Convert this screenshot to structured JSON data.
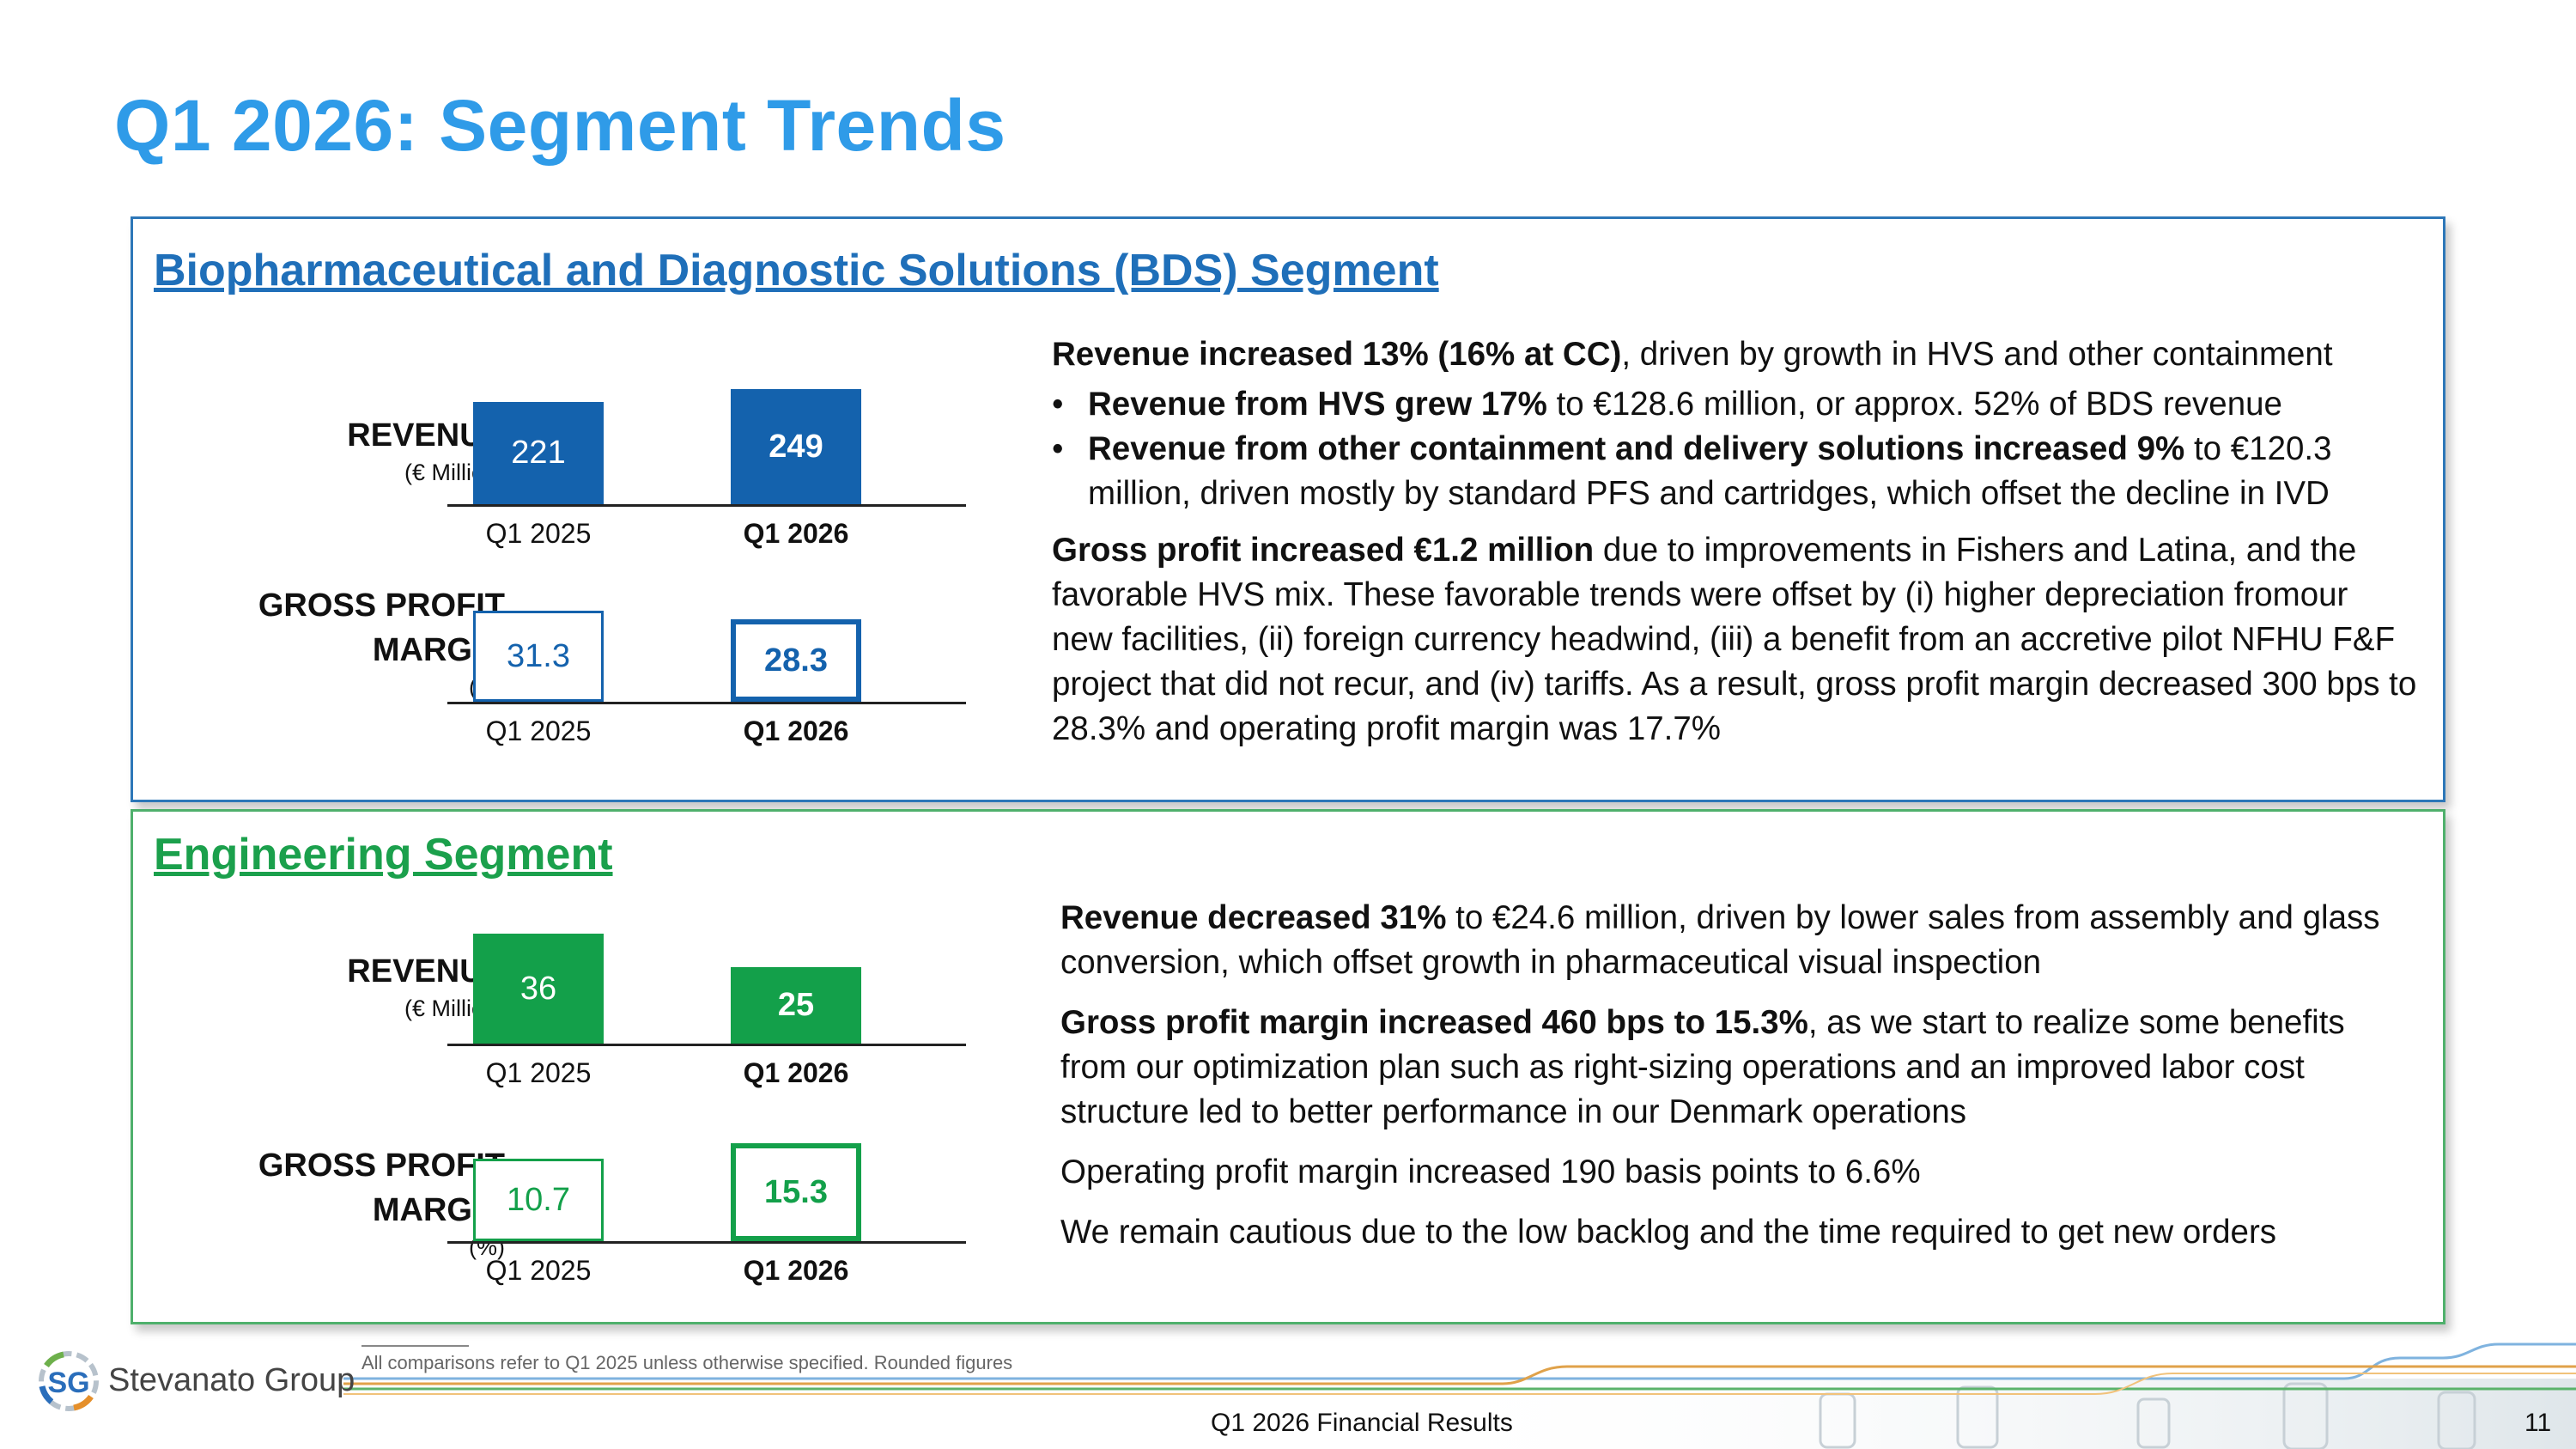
{
  "title": "Q1 2026: Segment Trends",
  "colors": {
    "title_blue": "#2f9be8",
    "bds_blue": "#1462ad",
    "bds_border": "#2d77b8",
    "eng_green": "#13a04a",
    "eng_border": "#4fb06c"
  },
  "bds": {
    "heading": "Biopharmaceutical and Diagnostic Solutions (BDS) Segment",
    "revenue_label": "REVENUE",
    "revenue_unit": "(€ Million)",
    "gpm_label_1": "GROSS PROFIT",
    "gpm_label_2": "MARGIN",
    "gpm_unit": "(%)",
    "text": {
      "p1_bold": "Revenue increased 13% (16% at CC)",
      "p1_rest": ", driven by growth in HVS and other containment",
      "b1_bold": "Revenue from HVS grew 17%",
      "b1_rest": " to €128.6 million, or approx. 52% of BDS revenue",
      "b2_bold": "Revenue from other containment and delivery solutions increased 9%",
      "b2_rest": " to €120.3 million, driven mostly by standard PFS and cartridges, which offset the decline in IVD",
      "p2_bold": "Gross profit increased €1.2 million",
      "p2_rest": " due to improvements in Fishers and Latina, and the favorable HVS mix. These favorable trends were offset by (i) higher depreciation fromour new facilities, (ii) foreign currency headwind, (iii) a benefit from an accretive pilot NFHU F&F project that did not recur, and (iv) tariffs. As a result, gross profit margin decreased 300 bps to 28.3% and operating profit margin was 17.7%"
    }
  },
  "engineering": {
    "heading": "Engineering Segment",
    "revenue_label": "REVENUE",
    "revenue_unit": "(€ Million)",
    "gpm_label_1": "GROSS PROFIT",
    "gpm_label_2": "MARGIN",
    "gpm_unit": "(%)",
    "text": {
      "p1_bold": "Revenue decreased 31%",
      "p1_rest": " to €24.6 million, driven by lower sales from assembly and glass conversion, which offset growth in pharmaceutical visual inspection",
      "p2_bold": "Gross profit margin increased 460 bps to 15.3%",
      "p2_rest": ", as we start to realize some benefits from our optimization plan such as right-sizing operations and an improved labor cost structure led to better performance in our Denmark operations",
      "p3": "Operating profit margin increased 190 basis points to 6.6%",
      "p4": "We remain cautious due to the low backlog and the time required to get new orders"
    }
  },
  "chart_data": [
    {
      "type": "bar",
      "id": "bds-revenue",
      "categories": [
        "Q1 2025",
        "Q1 2026"
      ],
      "values": [
        221,
        249
      ],
      "labels": [
        "221",
        "249"
      ],
      "ylabel": "REVENUE (€ Million)",
      "style": "solid",
      "color": "#1462ad"
    },
    {
      "type": "bar",
      "id": "bds-gpm",
      "categories": [
        "Q1 2025",
        "Q1 2026"
      ],
      "values": [
        31.3,
        28.3
      ],
      "labels": [
        "31.3",
        "28.3"
      ],
      "ylabel": "GROSS PROFIT MARGIN (%)",
      "style": "outline",
      "color": "#1462ad"
    },
    {
      "type": "bar",
      "id": "eng-revenue",
      "categories": [
        "Q1 2025",
        "Q1 2026"
      ],
      "values": [
        36,
        25
      ],
      "labels": [
        "36",
        "25"
      ],
      "ylabel": "REVENUE (€ Million)",
      "style": "solid",
      "color": "#13a04a"
    },
    {
      "type": "bar",
      "id": "eng-gpm",
      "categories": [
        "Q1 2025",
        "Q1 2026"
      ],
      "values": [
        10.7,
        15.3
      ],
      "labels": [
        "10.7",
        "15.3"
      ],
      "ylabel": "GROSS PROFIT MARGIN (%)",
      "style": "outline",
      "color": "#13a04a"
    }
  ],
  "footnote": "All comparisons refer to Q1 2025 unless otherwise specified. Rounded figures",
  "footer": {
    "center_text": "Q1 2026 Financial Results",
    "page_number": "11",
    "logo_initials": "SG",
    "logo_text": "Stevanato Group"
  },
  "icons": {
    "logo": "stevanato-logo-icon",
    "decor": "pharma-vials-decoration"
  }
}
